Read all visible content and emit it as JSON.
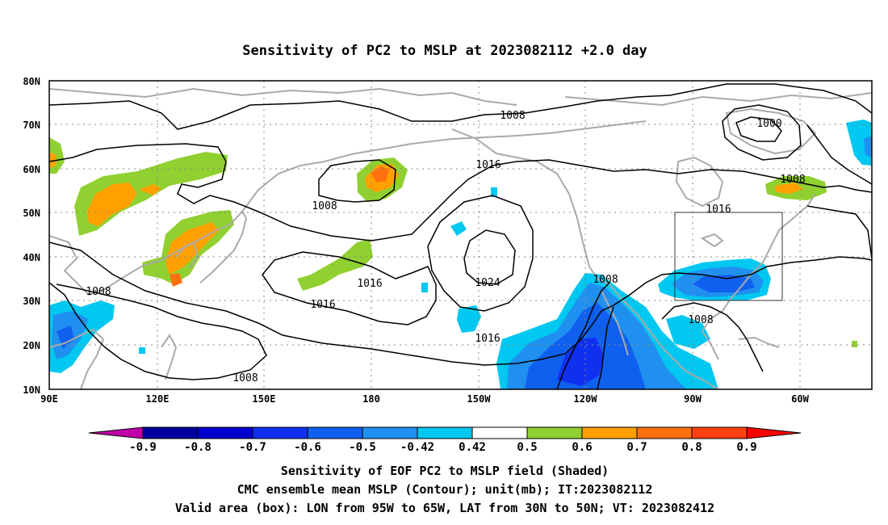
{
  "title": "Sensitivity of PC2 to MSLP at 2023082112 +2.0 day",
  "map": {
    "lon_labels": [
      "90E",
      "120E",
      "150E",
      "180",
      "150W",
      "120W",
      "90W",
      "60W"
    ],
    "lat_labels": [
      "80N",
      "70N",
      "60N",
      "50N",
      "40N",
      "30N",
      "20N",
      "10N"
    ],
    "gridlines": "dotted",
    "coastline_color": "#aaaaaa",
    "contour_labels": [
      {
        "id": "c1008a",
        "text": "1008"
      },
      {
        "id": "c1000",
        "text": "1000"
      },
      {
        "id": "c1008b",
        "text": "1008"
      },
      {
        "id": "c1016a",
        "text": "1016"
      },
      {
        "id": "c1008c",
        "text": "1008"
      },
      {
        "id": "c1016b",
        "text": "1016"
      },
      {
        "id": "c1024",
        "text": "1024"
      },
      {
        "id": "c1016c",
        "text": "1016"
      },
      {
        "id": "c1016d",
        "text": "1016"
      },
      {
        "id": "c1016e",
        "text": "1016"
      },
      {
        "id": "c1008d",
        "text": "1008"
      },
      {
        "id": "c1008e",
        "text": "1008"
      },
      {
        "id": "c1008f",
        "text": "1008"
      },
      {
        "id": "c1008g",
        "text": "1008"
      }
    ]
  },
  "colorbar": {
    "labels": [
      "-0.9",
      "-0.8",
      "-0.7",
      "-0.6",
      "-0.5",
      "-0.42",
      "0.42",
      "0.5",
      "0.6",
      "0.7",
      "0.8",
      "0.9"
    ],
    "colors": [
      "#c000a8",
      "#0000a0",
      "#0000d0",
      "#1030f0",
      "#1060f0",
      "#2090f0",
      "#00c8f0",
      "#ffffff",
      "#90d030",
      "#ffa000",
      "#ff7010",
      "#ff4010",
      "#ff0000",
      "#ffa0c8"
    ]
  },
  "caption": {
    "line1": "Sensitivity of EOF PC2 to MSLP field (Shaded)",
    "line2": "CMC ensemble mean MSLP (Contour); unit(mb); IT:2023082112",
    "line3": "Valid area (box): LON from 95W to 65W, LAT from 30N to 50N; VT: 2023082412"
  }
}
